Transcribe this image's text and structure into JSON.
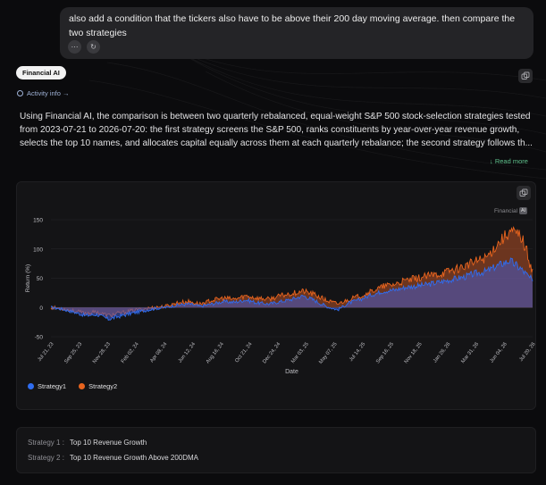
{
  "user_message": {
    "text": "also add a condition that the tickers also have to be above their 200 day moving average. then compare the two strategies"
  },
  "assistant": {
    "badge": "Financial AI",
    "activity_link": "Activity info →",
    "body": "Using Financial AI, the comparison is between two quarterly rebalanced, equal-weight S&P 500 stock-selection strategies tested from 2023-07-21 to 2026-07-20: the first strategy screens the S&P 500, ranks constituents by year-over-year revenue growth, selects the top 10 names, and allocates capital equally across them at each quarterly rebalance; the second strategy follows th...",
    "read_more": "↓ Read more"
  },
  "chart_data": {
    "type": "area",
    "watermark": "Financial",
    "watermark_badge": "AI",
    "ylabel": "Return (%)",
    "xlabel": "Date",
    "ylim": [
      -50,
      150
    ],
    "yticks": [
      "150",
      "100",
      "50",
      "0",
      "-50"
    ],
    "xticks": [
      "Jul 21, 23",
      "Sep 25, 23",
      "Nov 28, 23",
      "Feb 02, 24",
      "Apr 08, 24",
      "Jun 12, 24",
      "Aug 16, 24",
      "Oct 21, 24",
      "Dec 24, 24",
      "Mar 03, 25",
      "May 07, 25",
      "Jul 14, 25",
      "Sep 16, 25",
      "Nov 18, 25",
      "Jan 26, 26",
      "Mar 31, 26",
      "Jun 04, 26",
      "Jul 20, 26"
    ],
    "legend_placement": "bottom-left",
    "series": [
      {
        "name": "Strategy1",
        "color": "#2f6df0",
        "values": [
          0,
          -3,
          -8,
          -14,
          -12,
          -20,
          -15,
          -10,
          -6,
          -2,
          0,
          4,
          6,
          2,
          6,
          10,
          9,
          13,
          8,
          6,
          10,
          14,
          20,
          12,
          2,
          -4,
          8,
          14,
          22,
          28,
          30,
          35,
          37,
          40,
          44,
          48,
          52,
          58,
          62,
          72,
          80,
          66,
          45
        ]
      },
      {
        "name": "Strategy2",
        "color": "#e8641e",
        "values": [
          0,
          -2,
          -6,
          -10,
          -8,
          -14,
          -10,
          -6,
          -3,
          0,
          2,
          8,
          10,
          6,
          12,
          16,
          14,
          20,
          16,
          14,
          20,
          24,
          28,
          22,
          12,
          6,
          14,
          20,
          28,
          36,
          40,
          46,
          50,
          54,
          58,
          64,
          70,
          78,
          86,
          110,
          130,
          122,
          66
        ]
      }
    ]
  },
  "strategies": [
    {
      "key": "Strategy 1 :",
      "value": "Top 10 Revenue Growth"
    },
    {
      "key": "Strategy 2 :",
      "value": "Top 10 Revenue Growth Above 200DMA"
    }
  ],
  "colors": {
    "accent_green": "#5fc08c",
    "link_blue": "#9fb2d6",
    "strategy1": "#2f6df0",
    "strategy2": "#e8641e"
  }
}
